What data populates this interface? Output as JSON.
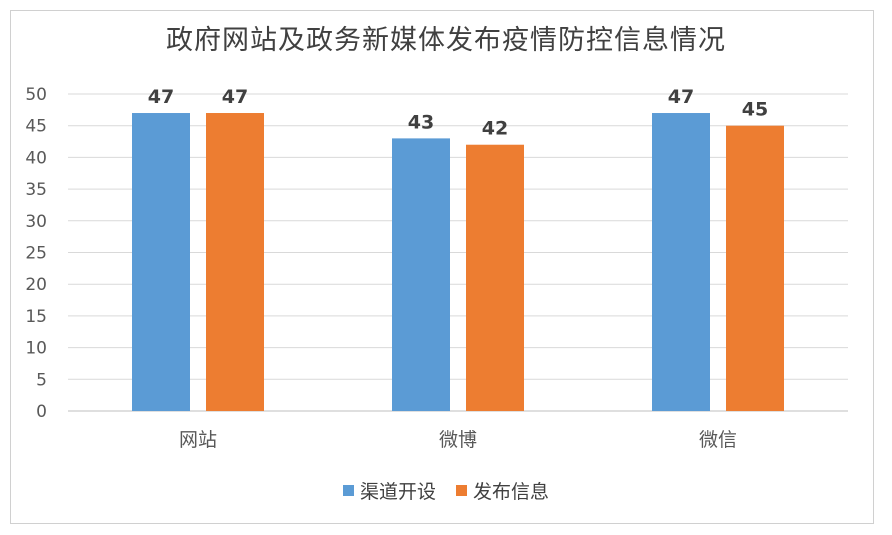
{
  "chart_data": {
    "type": "bar",
    "title": "政府网站及政务新媒体发布疫情防控信息情况",
    "categories": [
      "网站",
      "微博",
      "微信"
    ],
    "series": [
      {
        "name": "渠道开设",
        "values": [
          47,
          43,
          47
        ],
        "color": "#5b9bd5"
      },
      {
        "name": "发布信息",
        "values": [
          47,
          42,
          45
        ],
        "color": "#ed7d31"
      }
    ],
    "ylim": [
      0,
      50
    ],
    "yticks": [
      0,
      5,
      10,
      15,
      20,
      25,
      30,
      35,
      40,
      45,
      50
    ],
    "grid": true,
    "legend_position": "bottom"
  }
}
